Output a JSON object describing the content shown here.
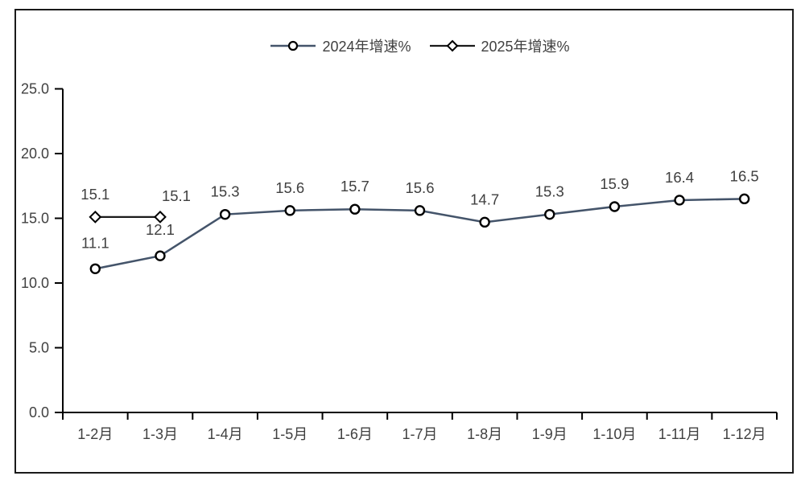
{
  "chart_data": {
    "type": "line",
    "categories": [
      "1-2月",
      "1-3月",
      "1-4月",
      "1-5月",
      "1-6月",
      "1-7月",
      "1-8月",
      "1-9月",
      "1-10月",
      "1-11月",
      "1-12月"
    ],
    "series": [
      {
        "name": "2024年增速%",
        "marker": "circle",
        "color": "#44546A",
        "values": [
          11.1,
          12.1,
          15.3,
          15.6,
          15.7,
          15.6,
          14.7,
          15.3,
          15.9,
          16.4,
          16.5
        ]
      },
      {
        "name": "2025年增速%",
        "marker": "diamond",
        "color": "#1a1a1a",
        "values": [
          15.1,
          15.1
        ]
      }
    ],
    "y_axis": {
      "min": 0,
      "max": 25,
      "step": 5,
      "tick_labels": [
        "0.0",
        "5.0",
        "10.0",
        "15.0",
        "20.0",
        "25.0"
      ]
    },
    "x_axis": {
      "tick_marks": "between-categories"
    },
    "title": "",
    "xlabel": "",
    "ylabel": "",
    "grid": false,
    "data_labels": true,
    "legend_position": "top-center"
  },
  "legend": {
    "series1_label": "2024年增速%",
    "series2_label": "2025年增速%"
  },
  "colors": {
    "series_2024": "#44546A",
    "series_2025": "#1a1a1a",
    "marker_stroke": "#000000",
    "marker_fill": "#ffffff",
    "text": "#404040",
    "axis": "#000000",
    "background": "#ffffff",
    "border": "#1a1a1a"
  }
}
